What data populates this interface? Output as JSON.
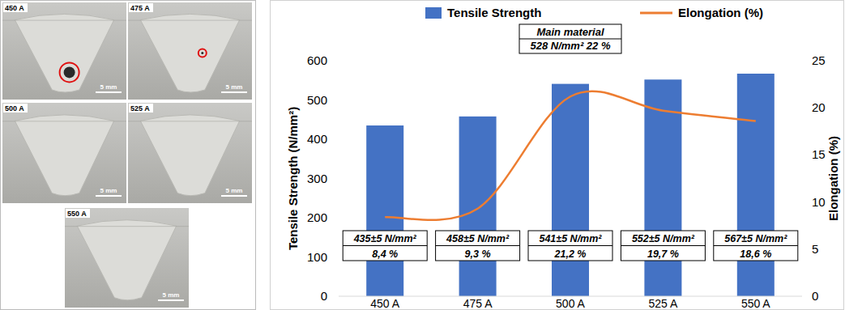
{
  "micrographs": [
    {
      "label": "450 A",
      "scale_bar": "5 mm",
      "defect": true
    },
    {
      "label": "475 A",
      "scale_bar": "5 mm",
      "defect": true
    },
    {
      "label": "500 A",
      "scale_bar": "5 mm",
      "defect": false
    },
    {
      "label": "525 A",
      "scale_bar": "5 mm",
      "defect": false
    },
    {
      "label": "550 A",
      "scale_bar": "5 mm",
      "defect": false
    }
  ],
  "chart_data": {
    "type": "bar",
    "categories": [
      "450 A",
      "475 A",
      "500 A",
      "525 A",
      "550 A"
    ],
    "series": [
      {
        "name": "Tensile Strength",
        "type": "bar",
        "color": "#4472c4",
        "values": [
          435,
          458,
          541,
          552,
          567
        ],
        "value_labels": [
          "435±5 N/mm²",
          "458±5 N/mm²",
          "541±5 N/mm²",
          "552±5 N/mm²",
          "567±5 N/mm²"
        ]
      },
      {
        "name": "Elongation (%)",
        "type": "line",
        "axis": "y2",
        "color": "#ed7d31",
        "line_style": "smooth",
        "values": [
          8.4,
          9.3,
          21.2,
          19.7,
          18.6
        ],
        "value_labels": [
          "8,4 %",
          "9,3 %",
          "21,2 %",
          "19,7 %",
          "18,6 %"
        ]
      }
    ],
    "y_label": "Tensile Strength (N/mm²)",
    "y2_label": "Elongation (%)",
    "ylim": [
      0,
      600
    ],
    "yticks": [
      0,
      100,
      200,
      300,
      400,
      500,
      600
    ],
    "y2lim": [
      0,
      25
    ],
    "y2ticks": [
      0,
      5,
      10,
      15,
      20,
      25
    ],
    "annotations": [
      "Main material",
      "528 N/mm² 22 %"
    ],
    "legend": "top",
    "grid": false,
    "data_labels": true
  }
}
